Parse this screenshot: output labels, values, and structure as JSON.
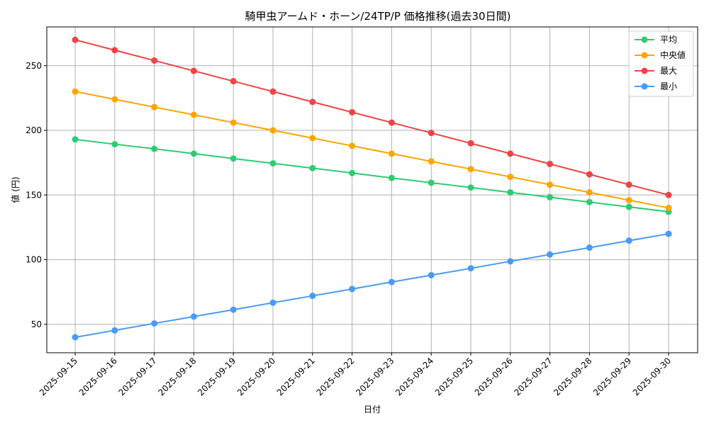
{
  "chart_data": {
    "type": "line",
    "title": "騎甲虫アームド・ホーン/24TP/P 価格推移(過去30日間)",
    "xlabel": "日付",
    "ylabel": "値 (円)",
    "categories": [
      "2025-09-15",
      "2025-09-16",
      "2025-09-17",
      "2025-09-18",
      "2025-09-19",
      "2025-09-20",
      "2025-09-21",
      "2025-09-22",
      "2025-09-23",
      "2025-09-24",
      "2025-09-25",
      "2025-09-26",
      "2025-09-27",
      "2025-09-28",
      "2025-09-29",
      "2025-09-30"
    ],
    "ylim": [
      28,
      280
    ],
    "yticks": [
      50,
      100,
      150,
      200,
      250
    ],
    "grid": true,
    "legend_position": "top-right",
    "series": [
      {
        "name": "平均",
        "color": "#2ecc71",
        "values": [
          193,
          189.3,
          185.7,
          182,
          178.2,
          174.5,
          170.8,
          167,
          163.2,
          159.5,
          155.8,
          152,
          148.3,
          144.5,
          140.8,
          137
        ]
      },
      {
        "name": "中央値",
        "color": "#ffa500",
        "values": [
          230,
          224,
          218,
          212,
          206,
          200,
          194,
          188,
          182,
          176,
          170,
          164,
          158,
          152,
          146,
          140
        ]
      },
      {
        "name": "最大",
        "color": "#ef4444",
        "values": [
          270,
          262,
          254,
          246,
          238,
          230,
          222,
          214,
          206,
          198,
          190,
          182,
          174,
          166,
          158,
          150
        ]
      },
      {
        "name": "最小",
        "color": "#4a9af5",
        "values": [
          40,
          45.3,
          50.7,
          56,
          61.3,
          66.7,
          72,
          77.3,
          82.7,
          88,
          93.3,
          98.7,
          104,
          109.3,
          114.7,
          120
        ]
      }
    ]
  }
}
